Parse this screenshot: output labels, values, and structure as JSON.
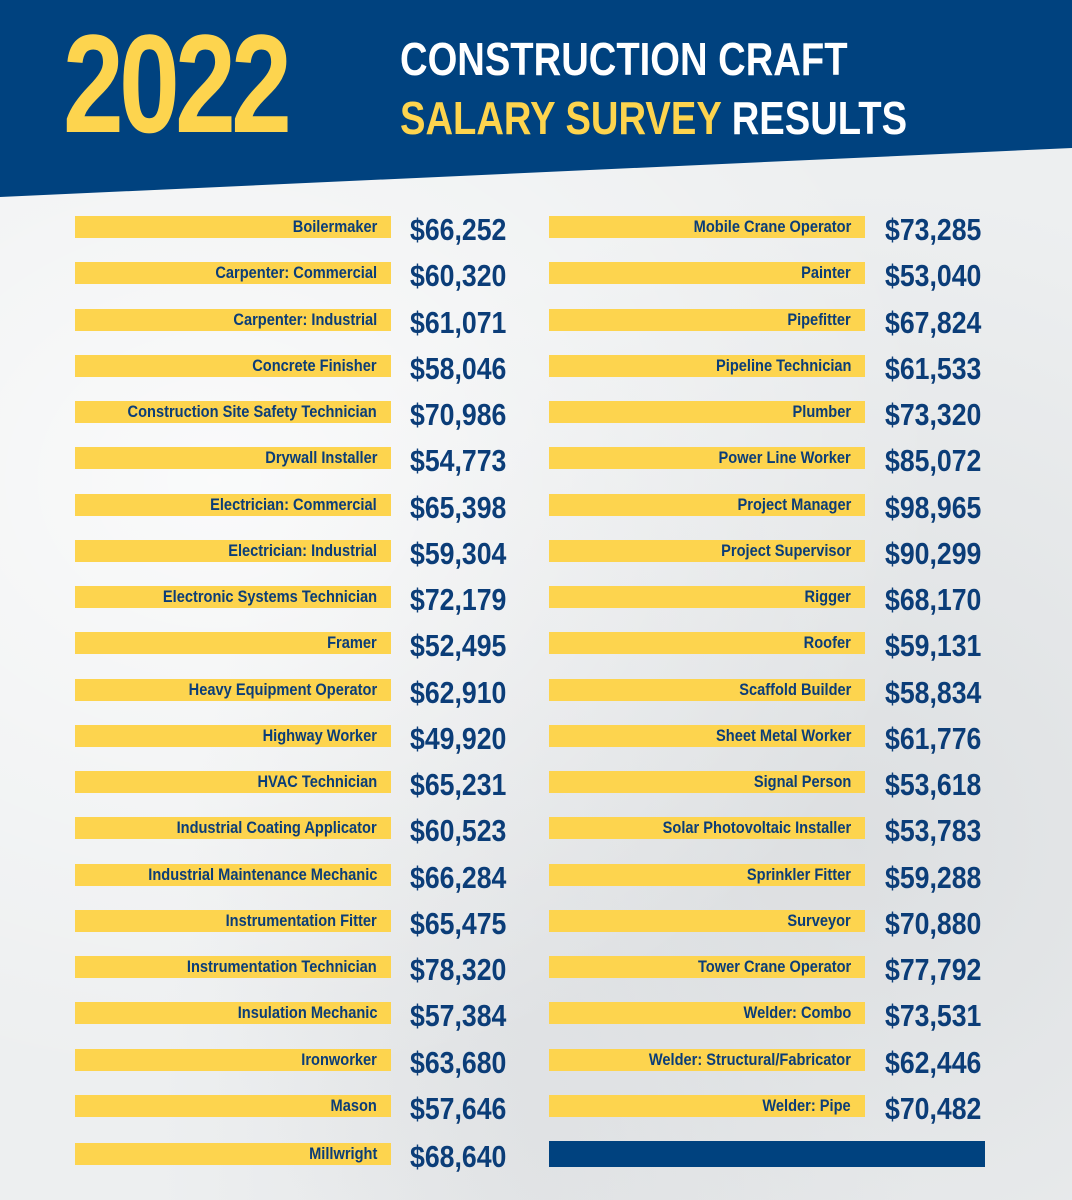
{
  "header": {
    "year": "2022",
    "line1": "CONSTRUCTION CRAFT",
    "line2_highlight": "SALARY SURVEY",
    "line2_rest": " RESULTS"
  },
  "colors": {
    "navy": "#00427f",
    "yellow": "#fdd44e",
    "bar_text": "#0b3d78",
    "salary_text": "#0b3d78"
  },
  "columns": [
    [
      {
        "craft": "Boilermaker",
        "salary": "$66,252"
      },
      {
        "craft": "Carpenter: Commercial",
        "salary": "$60,320"
      },
      {
        "craft": "Carpenter: Industrial",
        "salary": "$61,071"
      },
      {
        "craft": "Concrete Finisher",
        "salary": "$58,046"
      },
      {
        "craft": "Construction Site Safety Technician",
        "salary": "$70,986"
      },
      {
        "craft": "Drywall Installer",
        "salary": "$54,773"
      },
      {
        "craft": "Electrician: Commercial",
        "salary": "$65,398"
      },
      {
        "craft": "Electrician: Industrial",
        "salary": "$59,304"
      },
      {
        "craft": "Electronic Systems Technician",
        "salary": "$72,179"
      },
      {
        "craft": "Framer",
        "salary": "$52,495"
      },
      {
        "craft": "Heavy Equipment Operator",
        "salary": "$62,910"
      },
      {
        "craft": "Highway Worker",
        "salary": "$49,920"
      },
      {
        "craft": "HVAC Technician",
        "salary": "$65,231"
      },
      {
        "craft": "Industrial Coating Applicator",
        "salary": "$60,523"
      },
      {
        "craft": "Industrial Maintenance Mechanic",
        "salary": "$66,284"
      },
      {
        "craft": "Instrumentation Fitter",
        "salary": "$65,475"
      },
      {
        "craft": "Instrumentation Technician",
        "salary": "$78,320"
      },
      {
        "craft": "Insulation Mechanic",
        "salary": "$57,384"
      },
      {
        "craft": "Ironworker",
        "salary": "$63,680"
      },
      {
        "craft": "Mason",
        "salary": "$57,646"
      },
      {
        "craft": "Millwright",
        "salary": "$68,640"
      }
    ],
    [
      {
        "craft": "Mobile Crane Operator",
        "salary": "$73,285"
      },
      {
        "craft": "Painter",
        "salary": "$53,040"
      },
      {
        "craft": "Pipefitter",
        "salary": "$67,824"
      },
      {
        "craft": "Pipeline Technician",
        "salary": "$61,533"
      },
      {
        "craft": "Plumber",
        "salary": "$73,320"
      },
      {
        "craft": "Power Line Worker",
        "salary": "$85,072"
      },
      {
        "craft": "Project Manager",
        "salary": "$98,965"
      },
      {
        "craft": "Project Supervisor",
        "salary": "$90,299"
      },
      {
        "craft": "Rigger",
        "salary": "$68,170"
      },
      {
        "craft": "Roofer",
        "salary": "$59,131"
      },
      {
        "craft": "Scaffold Builder",
        "salary": "$58,834"
      },
      {
        "craft": "Sheet Metal Worker",
        "salary": "$61,776"
      },
      {
        "craft": "Signal Person",
        "salary": "$53,618"
      },
      {
        "craft": "Solar Photovoltaic Installer",
        "salary": "$53,783"
      },
      {
        "craft": "Sprinkler Fitter",
        "salary": "$59,288"
      },
      {
        "craft": "Surveyor",
        "salary": "$70,880"
      },
      {
        "craft": "Tower Crane Operator",
        "salary": "$77,792"
      },
      {
        "craft": "Welder: Combo",
        "salary": "$73,531"
      },
      {
        "craft": "Welder: Structural/Fabricator",
        "salary": "$62,446"
      },
      {
        "craft": "Welder: Pipe",
        "salary": "$70,482"
      }
    ]
  ]
}
